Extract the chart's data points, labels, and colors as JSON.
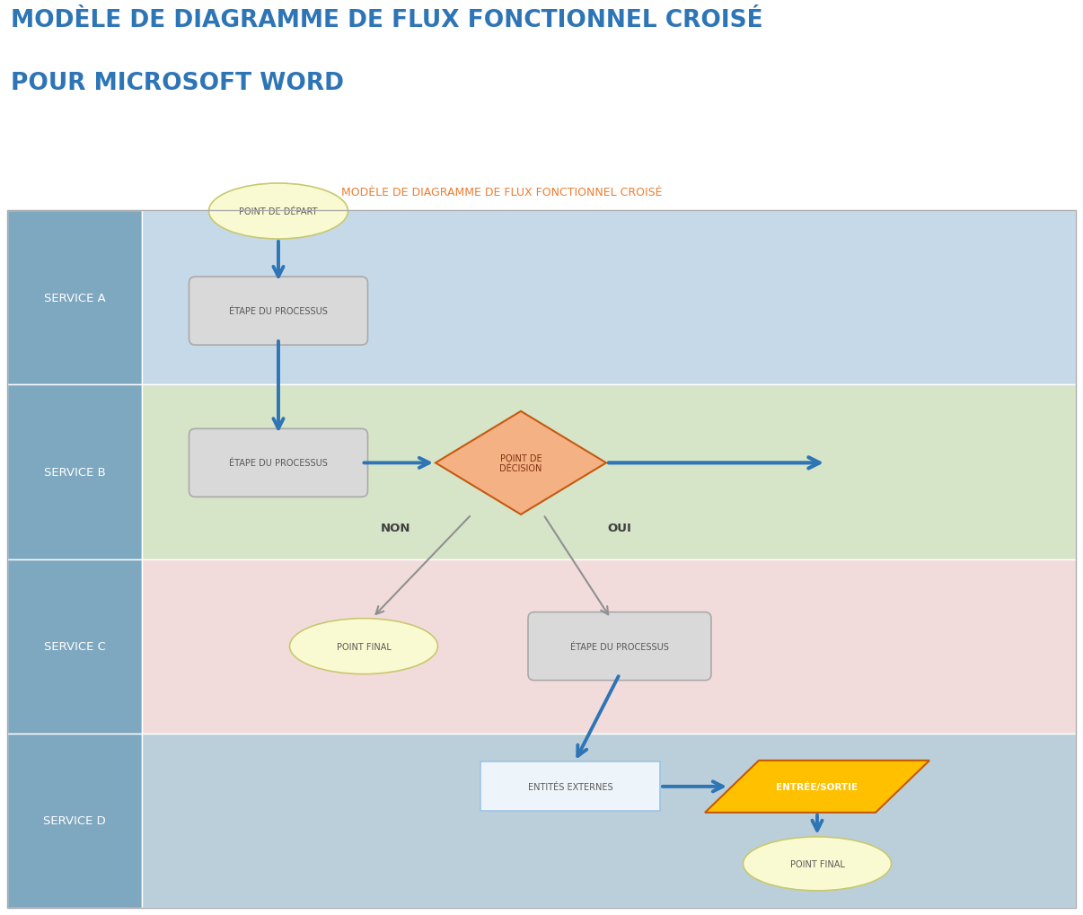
{
  "title_line1": "MODÈLE DE DIAGRAMME DE FLUX FONCTIONNEL CROISÉ",
  "title_line2": "POUR MICROSOFT WORD",
  "title_color": "#2E75B6",
  "subtitle": "MODÈLE DE DIAGRAMME DE FLUX FONCTIONNEL CROISÉ",
  "subtitle_color": "#ED7D31",
  "lane_labels": [
    "SERVICE A",
    "SERVICE B",
    "SERVICE C",
    "SERVICE D"
  ],
  "lane_label_color": "#7F7F7F",
  "lane_colors": [
    "#C5D9E8",
    "#D6E4C8",
    "#F2DCDB",
    "#BBCFDA"
  ],
  "lane_header_color": "#7EA7C0",
  "bg_color": "#FFFFFF",
  "arrow_color": "#2E75B6",
  "arrow_gray": "#909090",
  "process_box_fill": "#D9D9D9",
  "process_box_edge": "#AAAAAA",
  "process_text_color": "#595959",
  "decision_fill": "#F4B183",
  "decision_edge": "#C55A11",
  "decision_text_color": "#7F3011",
  "ellipse_fill": "#FAFAD2",
  "ellipse_edge": "#C8C870",
  "ellipse_text_color": "#595959",
  "extern_fill": "#DEEAF1",
  "extern_edge": "#9DC3E6",
  "extern_text_color": "#595959",
  "io_fill": "#FFC000",
  "io_edge": "#C55A00",
  "io_text_color": "#FFFFFF"
}
